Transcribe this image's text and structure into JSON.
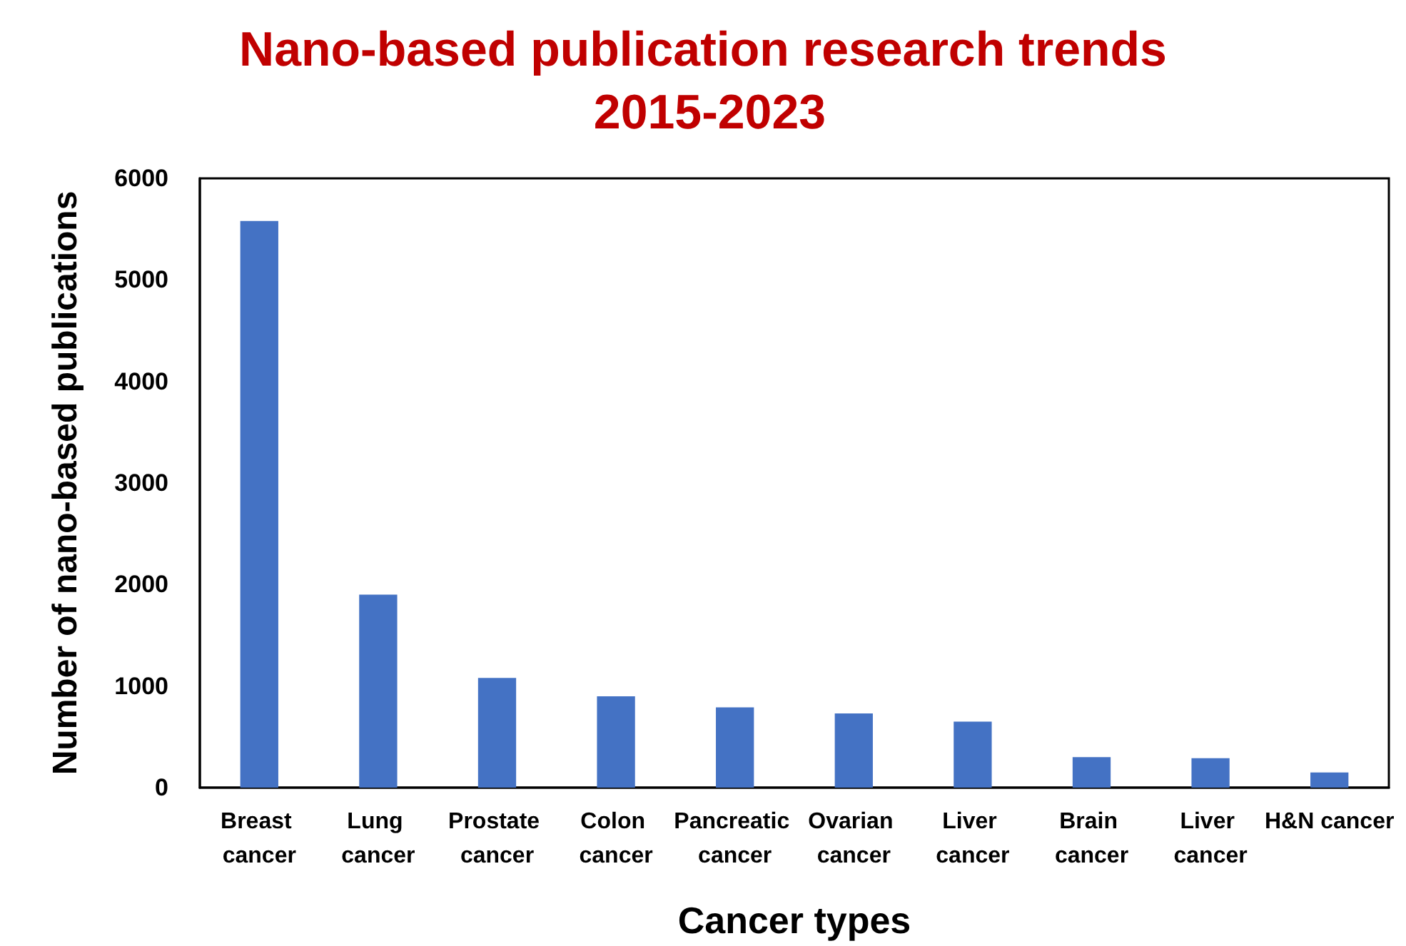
{
  "chart_data": {
    "type": "bar",
    "title": "Nano-based publication research trends 2015-2023",
    "xlabel": "Cancer types",
    "ylabel": "Number of nano-based publications",
    "categories": [
      "Breast cancer",
      "Lung cancer",
      "Prostate cancer",
      "Colon cancer",
      "Pancreatic cancer",
      "Ovarian cancer",
      "Liver cancer",
      "Brain cancer",
      "Liver cancer",
      "H&N cancer"
    ],
    "values": [
      5580,
      1900,
      1080,
      900,
      790,
      730,
      650,
      300,
      290,
      150
    ],
    "color": "#4472c4",
    "ylim": [
      0,
      6000
    ],
    "yticks": [
      0,
      1000,
      2000,
      3000,
      4000,
      5000,
      6000
    ],
    "grid": false
  }
}
